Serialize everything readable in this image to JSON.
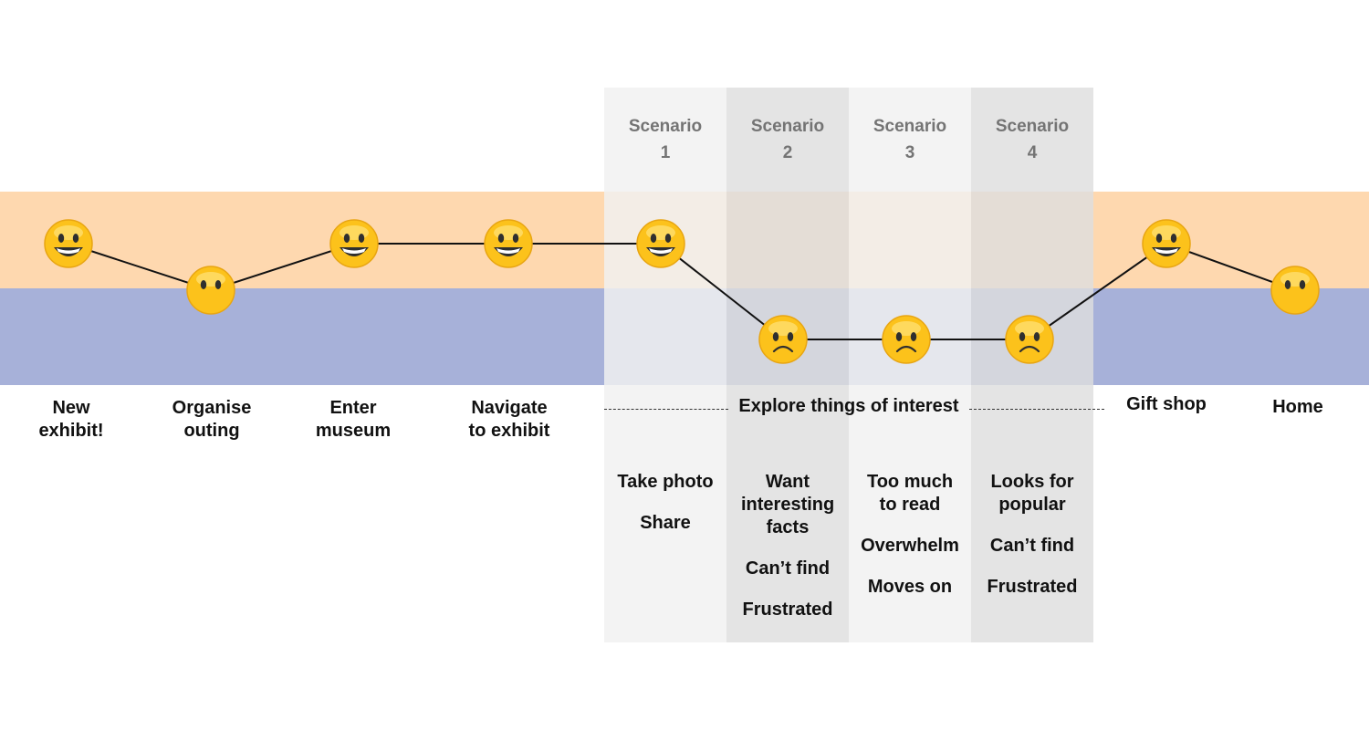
{
  "colors": {
    "positive_band": "#fed8af",
    "negative_band": "#a7b1d9",
    "scenario_light": "#f1f1f1",
    "scenario_dark": "#e2e2e2",
    "line": "#111111",
    "emoji_face": "#fcc21b",
    "emoji_feature": "#2f2f2f"
  },
  "scenarios": [
    {
      "title_line1": "Scenario",
      "title_line2": "1",
      "notes": [
        "Take photo",
        "Share"
      ]
    },
    {
      "title_line1": "Scenario",
      "title_line2": "2",
      "notes": [
        "Want interesting facts",
        "Can’t find",
        "Frustrated"
      ]
    },
    {
      "title_line1": "Scenario",
      "title_line2": "3",
      "notes": [
        "Too much to read",
        "Overwhelm",
        "Moves on"
      ]
    },
    {
      "title_line1": "Scenario",
      "title_line2": "4",
      "notes": [
        "Looks for popular",
        "Can’t find",
        "Frustrated"
      ]
    }
  ],
  "stages": [
    {
      "line1": "New",
      "line2": "exhibit!"
    },
    {
      "line1": "Organise",
      "line2": "outing"
    },
    {
      "line1": "Enter",
      "line2": "museum"
    },
    {
      "line1": "Navigate",
      "line2": "to exhibit"
    },
    {
      "line1": "Gift shop",
      "line2": ""
    },
    {
      "line1": "Home",
      "line2": ""
    }
  ],
  "explore_label": "Explore things of interest",
  "journey_points": [
    {
      "mood": "happy"
    },
    {
      "mood": "neutral"
    },
    {
      "mood": "happy"
    },
    {
      "mood": "happy"
    },
    {
      "mood": "happy"
    },
    {
      "mood": "sad"
    },
    {
      "mood": "sad"
    },
    {
      "mood": "sad"
    },
    {
      "mood": "happy"
    },
    {
      "mood": "neutral"
    }
  ]
}
